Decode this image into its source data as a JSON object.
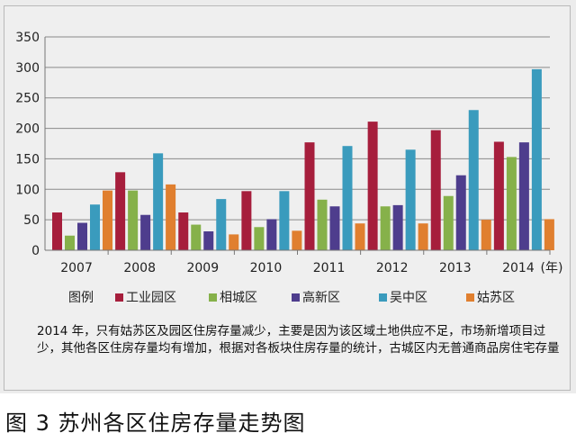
{
  "chart_data": {
    "type": "bar",
    "categories": [
      "2007",
      "2008",
      "2009",
      "2010",
      "2011",
      "2012",
      "2013",
      "2014"
    ],
    "x_unit_label": "(年)",
    "ylim": [
      0,
      350
    ],
    "yticks": [
      0,
      50,
      100,
      150,
      200,
      250,
      300,
      350
    ],
    "grid": true,
    "legend_title": "图例",
    "legend_position": "bottom",
    "series": [
      {
        "name": "工业园区",
        "color": "#a61e3c",
        "values": [
          62,
          128,
          62,
          97,
          177,
          211,
          197,
          178
        ]
      },
      {
        "name": "相城区",
        "color": "#86b14a",
        "values": [
          24,
          98,
          42,
          38,
          83,
          72,
          89,
          153
        ]
      },
      {
        "name": "高新区",
        "color": "#4e3d8d",
        "values": [
          45,
          58,
          31,
          51,
          72,
          74,
          123,
          177
        ]
      },
      {
        "name": "吴中区",
        "color": "#3a9bbd",
        "values": [
          75,
          159,
          84,
          97,
          171,
          165,
          230,
          297
        ]
      },
      {
        "name": "姑苏区",
        "color": "#e07f2f",
        "values": [
          98,
          108,
          26,
          32,
          44,
          44,
          50,
          51
        ]
      }
    ]
  },
  "note": "2014 年，只有姑苏区及园区住房存量减少，主要是因为该区域土地供应不足，市场新增项目过少，其他各区住房存量均有增加，根据对各板块住房存量的统计，古城区内无普通商品房住宅存量",
  "caption": "图 3  苏州各区住房存量走势图"
}
